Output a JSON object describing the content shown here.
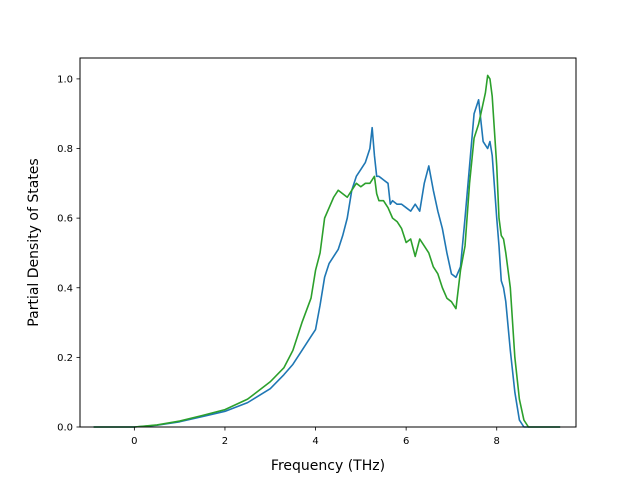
{
  "chart_data": {
    "type": "line",
    "title": "",
    "xlabel": "Frequency (THz)",
    "ylabel": "Partial Density of States",
    "xlim": [
      -1.2,
      9.75
    ],
    "ylim": [
      0.0,
      1.06
    ],
    "grid": false,
    "legend": "none",
    "x_ticks": [
      0,
      2,
      4,
      6,
      8
    ],
    "x_tick_labels": [
      "0",
      "2",
      "4",
      "6",
      "8"
    ],
    "y_ticks": [
      0.0,
      0.2,
      0.4,
      0.6,
      0.8,
      1.0
    ],
    "y_tick_labels": [
      "0.0",
      "0.2",
      "0.4",
      "0.6",
      "0.8",
      "1.0"
    ],
    "series": [
      {
        "color": "#1f77b4",
        "x": [
          -0.9,
          0.0,
          0.5,
          1.0,
          1.5,
          2.0,
          2.5,
          3.0,
          3.3,
          3.5,
          3.7,
          3.9,
          4.0,
          4.1,
          4.2,
          4.3,
          4.4,
          4.5,
          4.6,
          4.7,
          4.8,
          4.9,
          5.0,
          5.1,
          5.2,
          5.25,
          5.3,
          5.35,
          5.4,
          5.5,
          5.6,
          5.65,
          5.7,
          5.8,
          5.9,
          6.0,
          6.1,
          6.2,
          6.3,
          6.4,
          6.5,
          6.6,
          6.7,
          6.8,
          6.9,
          7.0,
          7.1,
          7.2,
          7.3,
          7.4,
          7.5,
          7.6,
          7.7,
          7.8,
          7.85,
          7.9,
          8.0,
          8.05,
          8.1,
          8.15,
          8.2,
          8.3,
          8.4,
          8.5,
          8.6,
          8.7,
          9.4
        ],
        "y": [
          0.0,
          0.0,
          0.005,
          0.015,
          0.03,
          0.045,
          0.07,
          0.11,
          0.15,
          0.18,
          0.22,
          0.26,
          0.28,
          0.35,
          0.43,
          0.47,
          0.49,
          0.51,
          0.55,
          0.6,
          0.68,
          0.72,
          0.74,
          0.76,
          0.8,
          0.86,
          0.78,
          0.72,
          0.72,
          0.71,
          0.7,
          0.64,
          0.65,
          0.64,
          0.64,
          0.63,
          0.62,
          0.64,
          0.62,
          0.7,
          0.75,
          0.68,
          0.62,
          0.57,
          0.5,
          0.44,
          0.43,
          0.46,
          0.6,
          0.75,
          0.9,
          0.94,
          0.82,
          0.8,
          0.82,
          0.78,
          0.6,
          0.52,
          0.42,
          0.4,
          0.36,
          0.22,
          0.1,
          0.02,
          0.0,
          0.0,
          0.0
        ]
      },
      {
        "color": "#2ca02c",
        "x": [
          -0.9,
          0.0,
          0.5,
          1.0,
          1.5,
          2.0,
          2.5,
          3.0,
          3.3,
          3.5,
          3.7,
          3.9,
          4.0,
          4.1,
          4.2,
          4.3,
          4.4,
          4.5,
          4.6,
          4.7,
          4.8,
          4.9,
          5.0,
          5.1,
          5.2,
          5.3,
          5.35,
          5.4,
          5.5,
          5.6,
          5.7,
          5.8,
          5.9,
          6.0,
          6.1,
          6.2,
          6.3,
          6.4,
          6.5,
          6.6,
          6.7,
          6.8,
          6.9,
          7.0,
          7.1,
          7.2,
          7.3,
          7.4,
          7.5,
          7.6,
          7.7,
          7.75,
          7.8,
          7.85,
          7.9,
          8.0,
          8.05,
          8.1,
          8.15,
          8.2,
          8.3,
          8.4,
          8.5,
          8.6,
          8.7,
          9.4
        ],
        "y": [
          0.0,
          0.0,
          0.006,
          0.017,
          0.033,
          0.05,
          0.08,
          0.13,
          0.17,
          0.22,
          0.3,
          0.37,
          0.45,
          0.5,
          0.6,
          0.63,
          0.66,
          0.68,
          0.67,
          0.66,
          0.68,
          0.7,
          0.69,
          0.7,
          0.7,
          0.72,
          0.67,
          0.65,
          0.65,
          0.63,
          0.6,
          0.59,
          0.57,
          0.53,
          0.54,
          0.49,
          0.54,
          0.52,
          0.5,
          0.46,
          0.44,
          0.4,
          0.37,
          0.36,
          0.34,
          0.45,
          0.52,
          0.7,
          0.83,
          0.87,
          0.93,
          0.96,
          1.01,
          1.0,
          0.95,
          0.75,
          0.6,
          0.55,
          0.54,
          0.5,
          0.4,
          0.2,
          0.08,
          0.02,
          0.0,
          0.0
        ]
      }
    ]
  }
}
